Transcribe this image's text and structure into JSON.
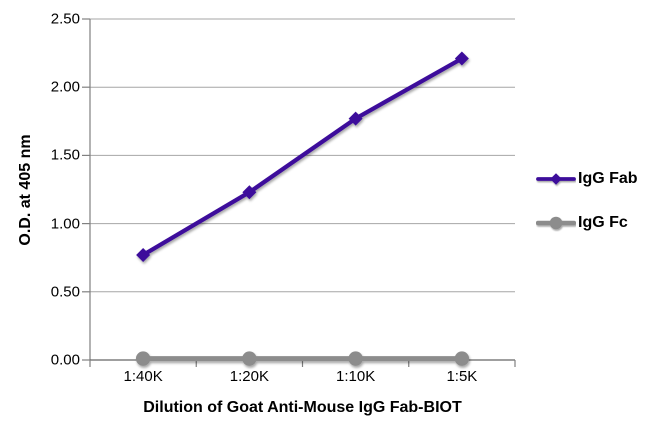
{
  "chart_data": {
    "type": "line",
    "title": "",
    "xlabel": "Dilution of Goat Anti-Mouse IgG Fab-BIOT",
    "ylabel": "O.D. at 405 nm",
    "categories": [
      "1:40K",
      "1:20K",
      "1:10K",
      "1:5K"
    ],
    "ytick_labels": [
      "0.00",
      "0.50",
      "1.00",
      "1.50",
      "2.00",
      "2.50"
    ],
    "ylim": [
      0,
      2.5
    ],
    "ytick_step": 0.5,
    "grid": "horizontal",
    "legend_position": "right",
    "series": [
      {
        "name": "IgG Fab",
        "marker": "diamond",
        "color": "#3D0E9B",
        "values": [
          0.77,
          1.23,
          1.77,
          2.21
        ]
      },
      {
        "name": "IgG Fc",
        "marker": "circle",
        "color": "#8C8C8C",
        "values": [
          0.01,
          0.01,
          0.01,
          0.01
        ]
      }
    ]
  },
  "colors": {
    "background": "#FFFFFF",
    "gridline": "#A6A6A6",
    "axis": "#808080",
    "text": "#000000"
  }
}
